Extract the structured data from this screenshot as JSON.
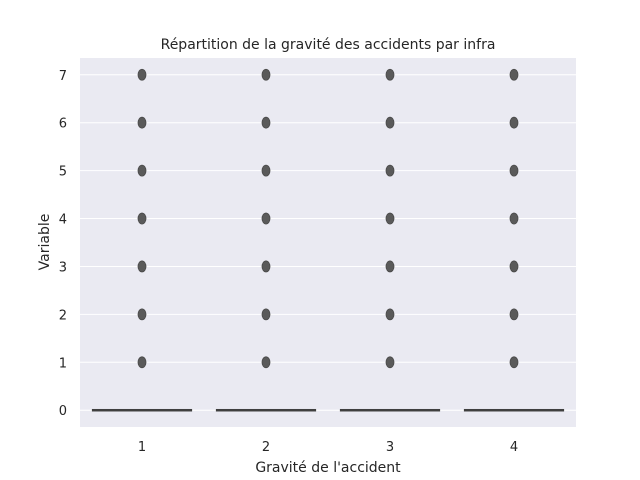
{
  "chart_data": {
    "type": "box",
    "title": "Répartition de la gravité des accidents par infra",
    "xlabel": "Gravité de l'accident",
    "ylabel": "Variable",
    "categories": [
      "1",
      "2",
      "3",
      "4"
    ],
    "ylim": [
      -0.35,
      7.35
    ],
    "yticks": [
      "0",
      "1",
      "2",
      "3",
      "4",
      "5",
      "6",
      "7"
    ],
    "grid": true,
    "boxes": [
      {
        "category": "1",
        "q1": 0,
        "median": 0,
        "q3": 0,
        "whisker_low": 0,
        "whisker_high": 0,
        "outliers": [
          1,
          2,
          3,
          4,
          5,
          6,
          7
        ]
      },
      {
        "category": "2",
        "q1": 0,
        "median": 0,
        "q3": 0,
        "whisker_low": 0,
        "whisker_high": 0,
        "outliers": [
          1,
          2,
          3,
          4,
          5,
          6,
          7
        ]
      },
      {
        "category": "3",
        "q1": 0,
        "median": 0,
        "q3": 0,
        "whisker_low": 0,
        "whisker_high": 0,
        "outliers": [
          1,
          2,
          3,
          4,
          5,
          6,
          7
        ]
      },
      {
        "category": "4",
        "q1": 0,
        "median": 0,
        "q3": 0,
        "whisker_low": 0,
        "whisker_high": 0,
        "outliers": [
          1,
          2,
          3,
          4,
          5,
          6,
          7
        ]
      }
    ],
    "colors": {
      "plot_background": "#EAEAF2",
      "grid": "#FFFFFF",
      "box_line": "#3F3F3F",
      "outlier": "#5A5A5A"
    }
  }
}
